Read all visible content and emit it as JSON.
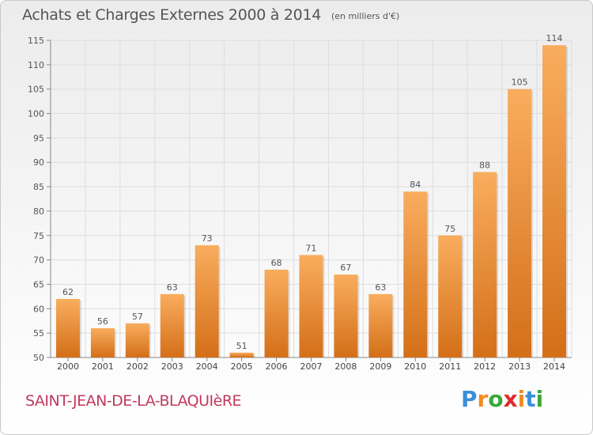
{
  "header": {
    "title": "Achats et Charges Externes 2000 à 2014",
    "subtitle": "(en milliers d'€)"
  },
  "footer": {
    "city": "SAINT-JEAN-DE-LA-BLAQUIèRE",
    "logo_letters": [
      "P",
      "r",
      "o",
      "x",
      "i",
      "t",
      "i"
    ],
    "logo_colors": [
      "#3b8fd9",
      "#f28c1e",
      "#3aa83a",
      "#e02a2a",
      "#f28c1e",
      "#3b8fd9",
      "#3aa83a"
    ]
  },
  "chart_data": {
    "type": "bar",
    "title": "Achats et Charges Externes 2000 à 2014",
    "subtitle": "(en milliers d'€)",
    "categories": [
      "2000",
      "2001",
      "2002",
      "2003",
      "2004",
      "2005",
      "2006",
      "2007",
      "2008",
      "2009",
      "2010",
      "2011",
      "2012",
      "2013",
      "2014"
    ],
    "values": [
      62,
      56,
      57,
      63,
      73,
      51,
      68,
      71,
      67,
      63,
      84,
      75,
      88,
      105,
      114
    ],
    "ylim": [
      50,
      115
    ],
    "yticks": [
      50,
      55,
      60,
      65,
      70,
      75,
      80,
      85,
      90,
      95,
      100,
      105,
      110,
      115
    ],
    "grid": true,
    "bar_color_top": "#f7a555",
    "bar_color_bottom": "#d8731c"
  }
}
